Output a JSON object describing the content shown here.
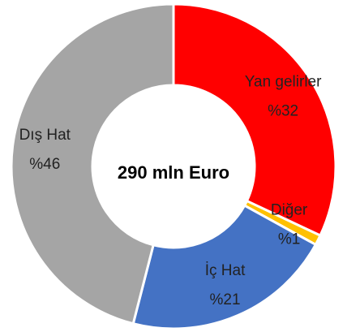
{
  "chart_data": {
    "type": "donut",
    "center_text": "290 mln Euro",
    "categories": [
      "Yan gelirler",
      "Diğer",
      "İç Hat",
      "Dış Hat"
    ],
    "values": [
      32,
      1,
      21,
      46
    ],
    "value_labels": [
      "%32",
      "%1",
      "%21",
      "%46"
    ],
    "colors": [
      "#ff0000",
      "#ffc000",
      "#4472c4",
      "#a5a5a5"
    ]
  }
}
